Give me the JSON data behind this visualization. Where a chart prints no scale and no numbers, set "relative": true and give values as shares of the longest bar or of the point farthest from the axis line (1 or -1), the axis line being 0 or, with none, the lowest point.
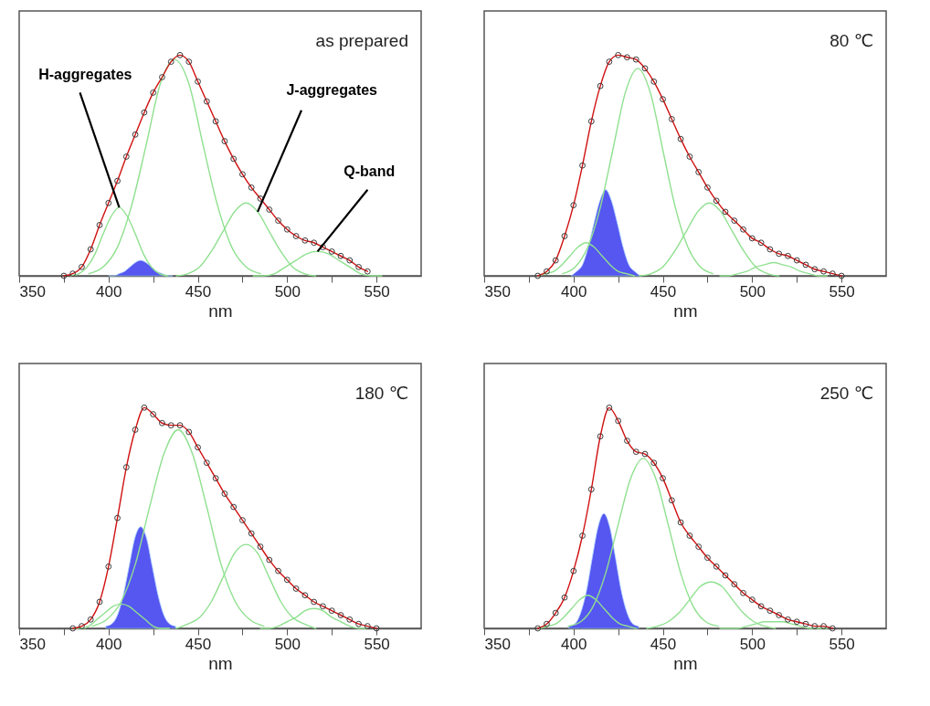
{
  "chart_data": [
    {
      "type": "line",
      "relative": true,
      "xlabel": "nm",
      "xlim": [
        350,
        575
      ],
      "xticks": [
        350,
        {
          "value": 375,
          "label": null
        },
        400,
        {
          "value": 425,
          "label": null
        },
        450,
        {
          "value": 475,
          "label": null
        },
        500,
        {
          "value": 525,
          "label": null
        },
        550
      ],
      "annotations": [
        "as prepared",
        {
          "text": "H-aggregates",
          "x": 406,
          "y": 0.31
        },
        {
          "text": "J-aggregates",
          "x": 483.5,
          "y": 0.29
        },
        {
          "text": "Q-band",
          "x": 517,
          "y": 0.11
        }
      ],
      "x": [
        375,
        380,
        385,
        390,
        395,
        400,
        405,
        410,
        415,
        420,
        425,
        430,
        435,
        440,
        445,
        450,
        455,
        460,
        465,
        470,
        475,
        480,
        485,
        490,
        495,
        500,
        505,
        510,
        515,
        520,
        525,
        530,
        535,
        540,
        545
      ],
      "series": [
        {
          "type": "line",
          "color": "#8fe08f",
          "x": [
            379,
            383.5,
            388,
            392.5,
            397,
            401.5,
            406,
            410.5,
            415,
            419.5,
            424,
            428.5,
            433
          ],
          "values": [
            0,
            0.01,
            0.04,
            0.1,
            0.19,
            0.27,
            0.31,
            0.27,
            0.19,
            0.1,
            0.04,
            0.01,
            0
          ]
        },
        {
          "type": "line",
          "color": "#8fe08f",
          "x": [
            389,
            397,
            405,
            413,
            421,
            429,
            437,
            445,
            453,
            461,
            469,
            477,
            485
          ],
          "values": [
            0.01,
            0.04,
            0.13,
            0.32,
            0.59,
            0.87,
            0.98,
            0.87,
            0.59,
            0.32,
            0.13,
            0.04,
            0.01
          ]
        },
        {
          "type": "line",
          "color": "#8fe08f",
          "x": [
            438,
            444.5,
            451,
            457.5,
            464,
            470.5,
            477,
            483.5,
            490,
            496.5,
            503,
            509.5,
            516
          ],
          "values": [
            0,
            0.01,
            0.04,
            0.11,
            0.2,
            0.29,
            0.33,
            0.29,
            0.2,
            0.11,
            0.04,
            0.01,
            0
          ]
        },
        {
          "type": "line",
          "color": "#8fe08f",
          "x": [
            481,
            487,
            493,
            499,
            505,
            511,
            517,
            523,
            529,
            535,
            541,
            547,
            553
          ],
          "values": [
            0,
            0,
            0.01,
            0.04,
            0.07,
            0.1,
            0.11,
            0.1,
            0.07,
            0.04,
            0.01,
            0,
            0
          ]
        },
        {
          "type": "area",
          "color": "#3f3ff0",
          "x": [
            400,
            403,
            406,
            409,
            412,
            415,
            418,
            421,
            424,
            427,
            430,
            433,
            436
          ],
          "values": [
            0,
            0,
            0.01,
            0.02,
            0.04,
            0.06,
            0.07,
            0.06,
            0.04,
            0.02,
            0.01,
            0,
            0
          ]
        },
        {
          "color": "#d01010",
          "values": [
            0,
            0.01,
            0.04,
            0.12,
            0.23,
            0.33,
            0.43,
            0.54,
            0.64,
            0.74,
            0.83,
            0.9,
            0.97,
            1.0,
            0.97,
            0.88,
            0.79,
            0.7,
            0.61,
            0.53,
            0.46,
            0.4,
            0.35,
            0.3,
            0.25,
            0.21,
            0.18,
            0.16,
            0.15,
            0.13,
            0.11,
            0.09,
            0.07,
            0.04,
            0.02
          ]
        },
        {
          "type": "scatter",
          "color": "#3a3a3a",
          "values": [
            0,
            0.01,
            0.04,
            0.12,
            0.23,
            0.33,
            0.43,
            0.54,
            0.64,
            0.74,
            0.83,
            0.9,
            0.97,
            1.0,
            0.97,
            0.88,
            0.79,
            0.7,
            0.61,
            0.53,
            0.46,
            0.4,
            0.35,
            0.3,
            0.25,
            0.21,
            0.18,
            0.16,
            0.15,
            0.13,
            0.11,
            0.09,
            0.07,
            0.04,
            0.02
          ]
        }
      ]
    },
    {
      "type": "line",
      "relative": true,
      "xlabel": "nm",
      "xlim": [
        350,
        575
      ],
      "xticks": [
        350,
        {
          "value": 375,
          "label": null
        },
        400,
        {
          "value": 425,
          "label": null
        },
        450,
        {
          "value": 475,
          "label": null
        },
        500,
        {
          "value": 525,
          "label": null
        },
        550
      ],
      "annotations": [
        "80 ℃"
      ],
      "x": [
        380,
        385,
        390,
        395,
        400,
        405,
        410,
        415,
        420,
        425,
        430,
        435,
        440,
        445,
        450,
        455,
        460,
        465,
        470,
        475,
        480,
        485,
        490,
        495,
        500,
        505,
        510,
        515,
        520,
        525,
        530,
        535,
        540,
        545,
        550
      ],
      "series": [
        {
          "type": "line",
          "color": "#8fe08f",
          "x": [
            380,
            384.5,
            389,
            393.5,
            398,
            402.5,
            407,
            411.5,
            416,
            420.5,
            425,
            429.5,
            434
          ],
          "values": [
            0,
            0.01,
            0.02,
            0.05,
            0.09,
            0.13,
            0.15,
            0.13,
            0.09,
            0.05,
            0.02,
            0.01,
            0
          ]
        },
        {
          "type": "line",
          "color": "#8fe08f",
          "x": [
            394,
            401,
            408,
            415,
            422,
            429,
            436,
            443,
            450,
            457,
            464,
            471,
            478
          ],
          "values": [
            0.01,
            0.04,
            0.13,
            0.31,
            0.57,
            0.83,
            0.94,
            0.83,
            0.57,
            0.31,
            0.13,
            0.04,
            0.01
          ]
        },
        {
          "type": "line",
          "color": "#8fe08f",
          "x": [
            437,
            443.5,
            450,
            456.5,
            463,
            469.5,
            476,
            482.5,
            489,
            495.5,
            502,
            508.5,
            515
          ],
          "values": [
            0,
            0.01,
            0.04,
            0.11,
            0.2,
            0.29,
            0.33,
            0.29,
            0.2,
            0.11,
            0.04,
            0.01,
            0
          ]
        },
        {
          "type": "line",
          "color": "#8fe08f",
          "x": [
            482,
            487,
            492,
            497,
            502,
            507,
            512,
            517,
            522,
            527,
            532,
            537,
            542
          ],
          "values": [
            0,
            0,
            0.01,
            0.02,
            0.04,
            0.05,
            0.06,
            0.05,
            0.04,
            0.02,
            0.01,
            0,
            0
          ]
        },
        {
          "type": "area",
          "color": "#3f3ff0",
          "x": [
            398.5,
            401.75,
            405,
            408.25,
            411.5,
            414.75,
            418,
            421.25,
            424.5,
            427.75,
            431,
            434.25,
            437.5
          ],
          "values": [
            0,
            0.02,
            0.05,
            0.13,
            0.24,
            0.34,
            0.39,
            0.34,
            0.24,
            0.13,
            0.05,
            0.02,
            0
          ]
        },
        {
          "color": "#d01010",
          "values": [
            0,
            0.02,
            0.07,
            0.18,
            0.32,
            0.5,
            0.7,
            0.86,
            0.97,
            1.0,
            0.99,
            0.98,
            0.94,
            0.88,
            0.8,
            0.71,
            0.62,
            0.54,
            0.47,
            0.4,
            0.34,
            0.29,
            0.25,
            0.21,
            0.17,
            0.15,
            0.12,
            0.1,
            0.09,
            0.07,
            0.05,
            0.03,
            0.02,
            0.01,
            0
          ]
        },
        {
          "type": "scatter",
          "color": "#3a3a3a",
          "values": [
            0,
            0.02,
            0.07,
            0.18,
            0.32,
            0.5,
            0.7,
            0.86,
            0.97,
            1.0,
            0.99,
            0.98,
            0.94,
            0.88,
            0.8,
            0.71,
            0.62,
            0.54,
            0.47,
            0.4,
            0.34,
            0.29,
            0.25,
            0.21,
            0.17,
            0.15,
            0.12,
            0.1,
            0.09,
            0.07,
            0.05,
            0.03,
            0.02,
            0.01,
            0
          ]
        }
      ]
    },
    {
      "type": "line",
      "relative": true,
      "xlabel": "nm",
      "xlim": [
        350,
        575
      ],
      "xticks": [
        350,
        {
          "value": 375,
          "label": null
        },
        400,
        {
          "value": 425,
          "label": null
        },
        450,
        {
          "value": 475,
          "label": null
        },
        500,
        {
          "value": 525,
          "label": null
        },
        550
      ],
      "annotations": [
        "180 ℃"
      ],
      "x": [
        380,
        385,
        390,
        395,
        400,
        405,
        410,
        415,
        420,
        425,
        430,
        435,
        440,
        445,
        450,
        455,
        460,
        465,
        470,
        475,
        480,
        485,
        490,
        495,
        500,
        505,
        510,
        515,
        520,
        525,
        530,
        535,
        540,
        545,
        550
      ],
      "series": [
        {
          "type": "line",
          "color": "#8fe08f",
          "x": [
            380,
            384.5,
            389,
            393.5,
            398,
            402.5,
            407,
            411.5,
            416,
            420.5,
            425,
            429.5,
            434
          ],
          "values": [
            0,
            0,
            0.01,
            0.04,
            0.07,
            0.1,
            0.11,
            0.1,
            0.07,
            0.04,
            0.01,
            0,
            0
          ]
        },
        {
          "type": "line",
          "color": "#8fe08f",
          "x": [
            391,
            399,
            407,
            415,
            423,
            431,
            439,
            447,
            455,
            463,
            471,
            479,
            487
          ],
          "values": [
            0.01,
            0.04,
            0.12,
            0.29,
            0.55,
            0.79,
            0.9,
            0.79,
            0.55,
            0.29,
            0.12,
            0.04,
            0.01
          ]
        },
        {
          "type": "line",
          "color": "#8fe08f",
          "x": [
            438,
            444.5,
            451,
            457.5,
            464,
            470.5,
            477,
            483.5,
            490,
            496.5,
            503,
            509.5,
            516
          ],
          "values": [
            0,
            0.02,
            0.05,
            0.12,
            0.23,
            0.34,
            0.38,
            0.34,
            0.23,
            0.12,
            0.05,
            0.02,
            0
          ]
        },
        {
          "type": "line",
          "color": "#8fe08f",
          "x": [
            485,
            490,
            495,
            500,
            505,
            510,
            515,
            520,
            525,
            530,
            535,
            540,
            545
          ],
          "values": [
            0,
            0,
            0.01,
            0.03,
            0.05,
            0.08,
            0.09,
            0.08,
            0.05,
            0.03,
            0.01,
            0,
            0
          ]
        },
        {
          "type": "area",
          "color": "#3f3ff0",
          "x": [
            398.5,
            401.75,
            405,
            408.25,
            411.5,
            414.75,
            418,
            421.25,
            424.5,
            427.75,
            431,
            434.25,
            437.5
          ],
          "values": [
            0.01,
            0.02,
            0.06,
            0.15,
            0.28,
            0.41,
            0.46,
            0.41,
            0.28,
            0.15,
            0.06,
            0.02,
            0.01
          ]
        },
        {
          "color": "#d01010",
          "values": [
            0,
            0.01,
            0.04,
            0.12,
            0.28,
            0.5,
            0.73,
            0.9,
            1.0,
            0.97,
            0.93,
            0.92,
            0.92,
            0.89,
            0.82,
            0.75,
            0.68,
            0.61,
            0.55,
            0.49,
            0.43,
            0.37,
            0.31,
            0.26,
            0.22,
            0.18,
            0.15,
            0.12,
            0.1,
            0.08,
            0.06,
            0.04,
            0.02,
            0.01,
            0
          ]
        },
        {
          "type": "scatter",
          "color": "#3a3a3a",
          "values": [
            0,
            0.01,
            0.04,
            0.12,
            0.28,
            0.5,
            0.73,
            0.9,
            1.0,
            0.97,
            0.93,
            0.92,
            0.92,
            0.89,
            0.82,
            0.75,
            0.68,
            0.61,
            0.55,
            0.49,
            0.43,
            0.37,
            0.31,
            0.26,
            0.22,
            0.18,
            0.15,
            0.12,
            0.1,
            0.08,
            0.06,
            0.04,
            0.02,
            0.01,
            0
          ]
        }
      ]
    },
    {
      "type": "line",
      "relative": true,
      "xlabel": "nm",
      "xlim": [
        350,
        575
      ],
      "xticks": [
        350,
        {
          "value": 375,
          "label": null
        },
        400,
        {
          "value": 425,
          "label": null
        },
        450,
        {
          "value": 475,
          "label": null
        },
        500,
        {
          "value": 525,
          "label": null
        },
        550
      ],
      "annotations": [
        "250 ℃"
      ],
      "x": [
        380,
        385,
        390,
        395,
        400,
        405,
        410,
        415,
        420,
        425,
        430,
        435,
        440,
        445,
        450,
        455,
        460,
        465,
        470,
        475,
        480,
        485,
        490,
        495,
        500,
        505,
        510,
        515,
        520,
        525,
        530,
        535,
        540,
        545
      ],
      "series": [
        {
          "type": "line",
          "color": "#8fe08f",
          "x": [
            381,
            385.5,
            390,
            394.5,
            399,
            403.5,
            408,
            412.5,
            417,
            421.5,
            426,
            430.5,
            435
          ],
          "values": [
            0,
            0.01,
            0.02,
            0.05,
            0.09,
            0.13,
            0.15,
            0.13,
            0.09,
            0.05,
            0.02,
            0.01,
            0
          ]
        },
        {
          "type": "line",
          "color": "#8fe08f",
          "x": [
            397,
            404,
            411,
            418,
            425,
            432,
            439,
            446,
            453,
            460,
            467,
            474,
            481
          ],
          "values": [
            0.01,
            0.03,
            0.1,
            0.25,
            0.47,
            0.68,
            0.77,
            0.68,
            0.47,
            0.25,
            0.1,
            0.03,
            0.01
          ]
        },
        {
          "type": "line",
          "color": "#8fe08f",
          "x": [
            441,
            447,
            453,
            459,
            465,
            471,
            477,
            483,
            489,
            495,
            501,
            507,
            513
          ],
          "values": [
            0,
            0.01,
            0.03,
            0.07,
            0.13,
            0.19,
            0.21,
            0.19,
            0.13,
            0.07,
            0.03,
            0.01,
            0
          ]
        },
        {
          "type": "line",
          "color": "#8fe08f",
          "x": [
            482,
            487,
            492,
            497,
            502,
            507,
            512,
            517,
            522,
            527,
            532,
            537,
            542
          ],
          "values": [
            0,
            0,
            0,
            0.01,
            0.02,
            0.03,
            0.03,
            0.03,
            0.02,
            0.01,
            0,
            0,
            0
          ]
        },
        {
          "type": "area",
          "color": "#3f3ff0",
          "x": [
            397.5,
            400.75,
            404,
            407.25,
            410.5,
            413.75,
            417,
            420.25,
            423.5,
            426.75,
            430,
            433.25,
            436.5
          ],
          "values": [
            0.01,
            0.02,
            0.07,
            0.17,
            0.32,
            0.46,
            0.52,
            0.46,
            0.32,
            0.17,
            0.07,
            0.02,
            0.01
          ]
        },
        {
          "color": "#d01010",
          "values": [
            0,
            0.02,
            0.07,
            0.14,
            0.26,
            0.42,
            0.63,
            0.87,
            1.0,
            0.94,
            0.85,
            0.8,
            0.79,
            0.75,
            0.68,
            0.58,
            0.48,
            0.42,
            0.37,
            0.32,
            0.28,
            0.24,
            0.2,
            0.16,
            0.13,
            0.1,
            0.08,
            0.06,
            0.04,
            0.03,
            0.02,
            0.01,
            0.01,
            0
          ]
        },
        {
          "type": "scatter",
          "color": "#3a3a3a",
          "values": [
            0,
            0.02,
            0.07,
            0.14,
            0.26,
            0.42,
            0.63,
            0.87,
            1.0,
            0.94,
            0.85,
            0.8,
            0.79,
            0.75,
            0.68,
            0.58,
            0.48,
            0.42,
            0.37,
            0.32,
            0.28,
            0.24,
            0.2,
            0.16,
            0.13,
            0.1,
            0.08,
            0.06,
            0.04,
            0.03,
            0.02,
            0.01,
            0.01,
            0
          ]
        }
      ]
    }
  ]
}
